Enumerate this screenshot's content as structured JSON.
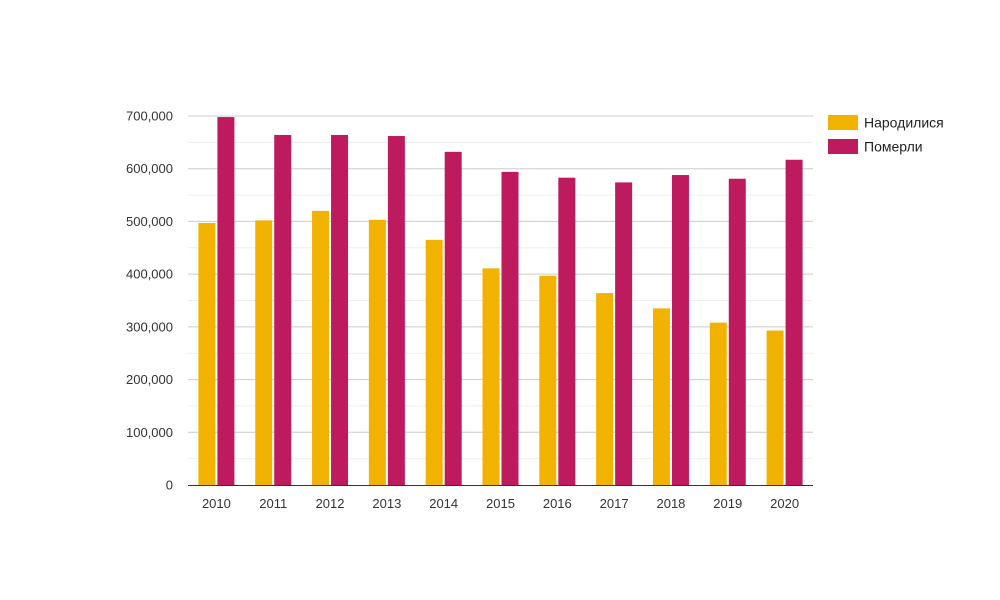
{
  "chart_data": {
    "type": "bar",
    "title": "",
    "xlabel": "",
    "ylabel": "",
    "categories": [
      "2010",
      "2011",
      "2012",
      "2013",
      "2014",
      "2015",
      "2016",
      "2017",
      "2018",
      "2019",
      "2020"
    ],
    "series": [
      {
        "name": "Народилися",
        "color": "#f2b200",
        "values": [
          497000,
          502000,
          520000,
          503000,
          465000,
          411000,
          397000,
          364000,
          335000,
          308000,
          293000
        ]
      },
      {
        "name": "Померли",
        "color": "#be1a5e",
        "values": [
          698000,
          664000,
          664000,
          662000,
          632000,
          594000,
          583000,
          574000,
          588000,
          581000,
          617000
        ]
      }
    ],
    "ylim": [
      0,
      700000
    ],
    "yticks": [
      0,
      100000,
      200000,
      300000,
      400000,
      500000,
      600000,
      700000
    ],
    "ytick_labels": [
      "0",
      "100,000",
      "200,000",
      "300,000",
      "400,000",
      "500,000",
      "600,000",
      "700,000"
    ],
    "grid": true,
    "legend_position": "top-right"
  }
}
